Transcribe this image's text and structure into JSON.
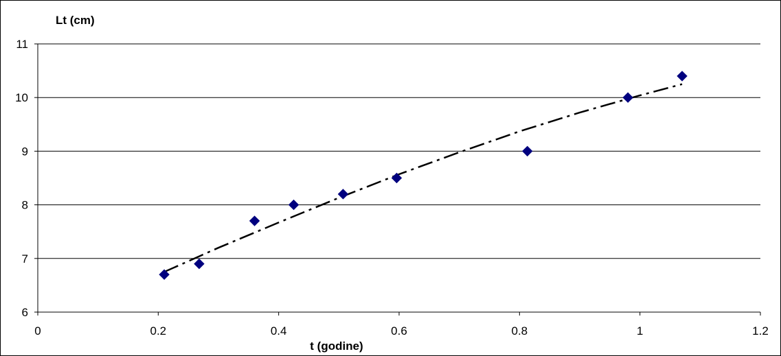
{
  "chart_data": {
    "type": "scatter",
    "title": "",
    "xlabel": "t (godine)",
    "ylabel": "Lt (cm)",
    "xlim": [
      0,
      1.2
    ],
    "ylim": [
      6,
      11
    ],
    "xticks": [
      "0",
      "0.2",
      "0.4",
      "0.6",
      "0.8",
      "1",
      "1.2"
    ],
    "yticks": [
      "6",
      "7",
      "8",
      "9",
      "10",
      "11"
    ],
    "grid": "horizontal",
    "legend": "none",
    "series": [
      {
        "type": "scatter",
        "marker": "diamond",
        "color": "#00007f",
        "points": [
          {
            "x": 0.21,
            "y": 6.7
          },
          {
            "x": 0.268,
            "y": 6.9
          },
          {
            "x": 0.36,
            "y": 7.7
          },
          {
            "x": 0.425,
            "y": 8.0
          },
          {
            "x": 0.507,
            "y": 8.2
          },
          {
            "x": 0.596,
            "y": 8.5
          },
          {
            "x": 0.813,
            "y": 9.0
          },
          {
            "x": 0.98,
            "y": 10.0
          },
          {
            "x": 1.07,
            "y": 10.4
          }
        ]
      },
      {
        "type": "line",
        "style": "dash-dot",
        "color": "#000000",
        "points": [
          {
            "x": 0.21,
            "y": 6.75
          },
          {
            "x": 0.3,
            "y": 7.2
          },
          {
            "x": 0.4,
            "y": 7.67
          },
          {
            "x": 0.5,
            "y": 8.13
          },
          {
            "x": 0.6,
            "y": 8.57
          },
          {
            "x": 0.7,
            "y": 8.98
          },
          {
            "x": 0.8,
            "y": 9.37
          },
          {
            "x": 0.9,
            "y": 9.72
          },
          {
            "x": 1.0,
            "y": 10.04
          },
          {
            "x": 1.07,
            "y": 10.25
          }
        ]
      }
    ]
  }
}
